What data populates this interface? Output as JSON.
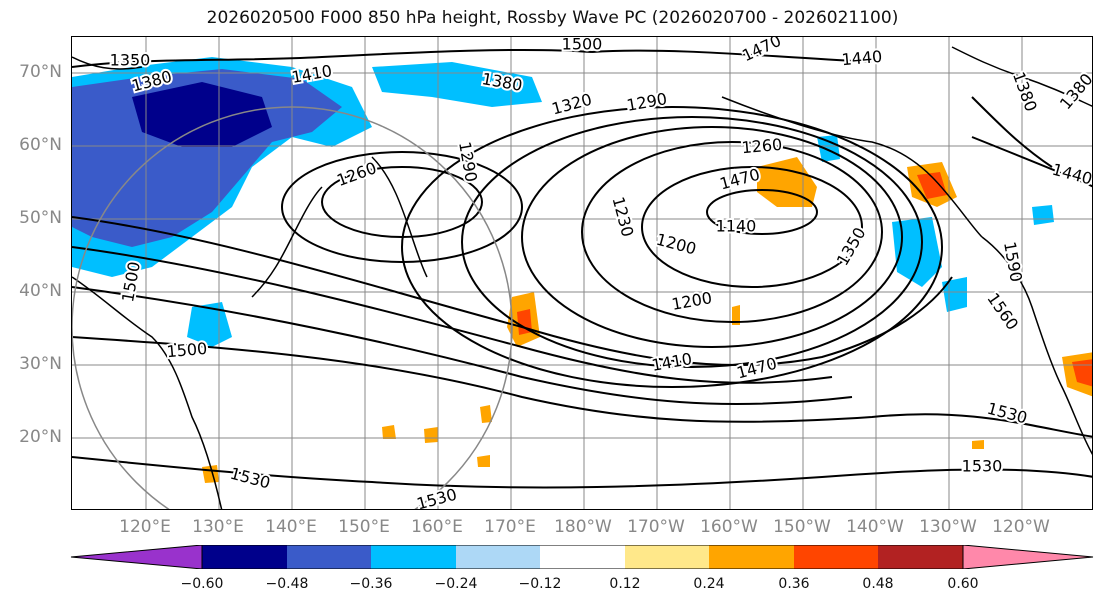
{
  "title": "2026020500 F000 850 hPa height, Rossby Wave PC (2026020700 - 2026021100)",
  "lat_labels": [
    "70°N",
    "60°N",
    "50°N",
    "40°N",
    "30°N",
    "20°N"
  ],
  "lon_labels": [
    "120°E",
    "130°E",
    "140°E",
    "150°E",
    "160°E",
    "170°E",
    "180°W",
    "170°W",
    "160°W",
    "150°W",
    "140°W",
    "130°W",
    "120°W"
  ],
  "contour_labels": [
    "1350",
    "1380",
    "1410",
    "1380",
    "1500",
    "1470",
    "1440",
    "1380",
    "1320",
    "1290",
    "1260",
    "1260",
    "1470",
    "1140",
    "1200",
    "1200",
    "1230",
    "1350",
    "1440",
    "1590",
    "1560",
    "1500",
    "1500",
    "1410",
    "1470",
    "1530",
    "1530",
    "1530",
    "1530",
    "1290",
    "1380"
  ],
  "colorbar": {
    "colors": [
      "#9932CC",
      "#00008B",
      "#3A5BC9",
      "#00BFFF",
      "#ADD8F6",
      "#FFFFFF",
      "#FFE88A",
      "#FFA500",
      "#FF4500",
      "#B22222",
      "#FF88AA"
    ],
    "ticks": [
      "−0.60",
      "−0.48",
      "−0.36",
      "−0.24",
      "−0.12",
      "0.12",
      "0.24",
      "0.36",
      "0.48",
      "0.60"
    ]
  }
}
